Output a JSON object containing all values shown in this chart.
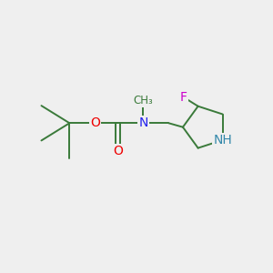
{
  "background_color": "#efefef",
  "bond_color": "#3a7a3a",
  "atom_colors": {
    "O": "#ee0000",
    "N": "#2222ee",
    "NH": "#3388aa",
    "F": "#cc00cc",
    "C": "#3a7a3a"
  },
  "bond_lw": 1.4,
  "font_size_atom": 10,
  "font_size_methyl": 8.5,
  "figsize": [
    3.0,
    3.0
  ],
  "dpi": 100,
  "xlim": [
    0,
    10
  ],
  "ylim": [
    0,
    10
  ]
}
